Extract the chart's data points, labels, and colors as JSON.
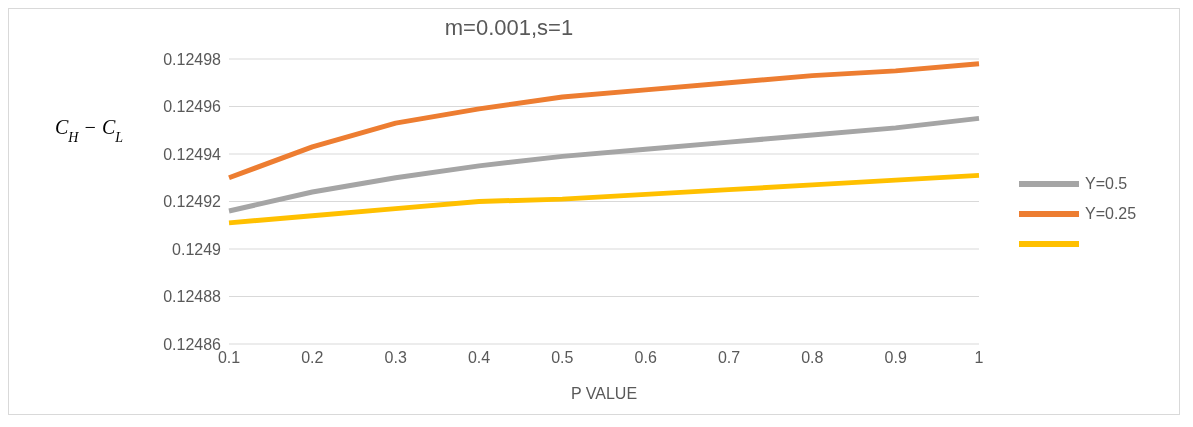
{
  "chart_data": {
    "type": "line",
    "title": "m=0.001,s=1",
    "xlabel": "P VALUE",
    "ylabel": "C$_{H}$ − C$_{L}$",
    "categories": [
      "0.1",
      "0.2",
      "0.3",
      "0.4",
      "0.5",
      "0.6",
      "0.7",
      "0.8",
      "0.9",
      "1"
    ],
    "series": [
      {
        "name": "Υ=0.5",
        "color": "#a5a5a5",
        "values": [
          0.124916,
          0.124924,
          0.12493,
          0.124935,
          0.124939,
          0.124942,
          0.124945,
          0.124948,
          0.124951,
          0.124955
        ]
      },
      {
        "name": "Υ=0.25",
        "color": "#ed7d31",
        "values": [
          0.12493,
          0.124943,
          0.124953,
          0.124959,
          0.124964,
          0.124967,
          0.12497,
          0.124973,
          0.124975,
          0.124978
        ]
      },
      {
        "color": "#ffc000",
        "values": [
          0.124911,
          0.124914,
          0.124917,
          0.12492,
          0.124921,
          0.124923,
          0.124925,
          0.124927,
          0.124929,
          0.124931
        ]
      }
    ],
    "ylim": [
      0.12486,
      0.12498
    ],
    "yticks": [
      0.12486,
      0.12488,
      0.1249,
      0.12492,
      0.12494,
      0.12496,
      0.12498
    ],
    "grid": "y",
    "legend": "right",
    "marker": "none",
    "line_style": "solid"
  }
}
